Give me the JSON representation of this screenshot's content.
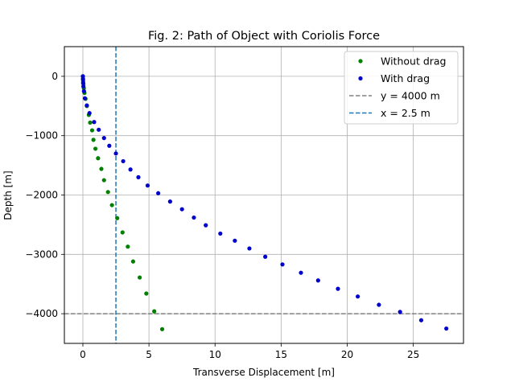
{
  "chart_data": {
    "type": "scatter",
    "title": "Fig. 2: Path of Object with Coriolis Force",
    "xlabel": "Transverse Displacement [m]",
    "ylabel": "Depth [m]",
    "xlim": [
      -1.4,
      28.8
    ],
    "ylim": [
      -4500,
      500
    ],
    "xticks": [
      0,
      5,
      10,
      15,
      20,
      25
    ],
    "yticks": [
      0,
      -1000,
      -2000,
      -3000,
      -4000
    ],
    "grid": true,
    "legend_position": "upper right",
    "series": [
      {
        "name": "Without drag",
        "color": "#008000",
        "marker": "dot",
        "points": [
          [
            0.0,
            0
          ],
          [
            0.01,
            -40
          ],
          [
            0.02,
            -80
          ],
          [
            0.04,
            -130
          ],
          [
            0.07,
            -200
          ],
          [
            0.12,
            -280
          ],
          [
            0.2,
            -380
          ],
          [
            0.3,
            -500
          ],
          [
            0.45,
            -650
          ],
          [
            0.55,
            -780
          ],
          [
            0.7,
            -910
          ],
          [
            0.8,
            -1070
          ],
          [
            0.95,
            -1220
          ],
          [
            1.15,
            -1380
          ],
          [
            1.4,
            -1560
          ],
          [
            1.6,
            -1750
          ],
          [
            1.9,
            -1950
          ],
          [
            2.2,
            -2170
          ],
          [
            2.6,
            -2390
          ],
          [
            3.0,
            -2630
          ],
          [
            3.4,
            -2870
          ],
          [
            3.8,
            -3120
          ],
          [
            4.3,
            -3390
          ],
          [
            4.8,
            -3660
          ],
          [
            5.4,
            -3960
          ],
          [
            6.0,
            -4260
          ]
        ]
      },
      {
        "name": "With drag",
        "color": "#0000cc",
        "marker": "dot",
        "points": [
          [
            0.0,
            0
          ],
          [
            0.01,
            -50
          ],
          [
            0.02,
            -110
          ],
          [
            0.04,
            -170
          ],
          [
            0.08,
            -250
          ],
          [
            0.15,
            -370
          ],
          [
            0.3,
            -490
          ],
          [
            0.5,
            -620
          ],
          [
            0.85,
            -770
          ],
          [
            1.2,
            -900
          ],
          [
            1.6,
            -1040
          ],
          [
            2.0,
            -1170
          ],
          [
            2.5,
            -1300
          ],
          [
            3.05,
            -1430
          ],
          [
            3.6,
            -1570
          ],
          [
            4.2,
            -1700
          ],
          [
            4.9,
            -1840
          ],
          [
            5.7,
            -1970
          ],
          [
            6.6,
            -2110
          ],
          [
            7.5,
            -2240
          ],
          [
            8.4,
            -2380
          ],
          [
            9.3,
            -2510
          ],
          [
            10.4,
            -2650
          ],
          [
            11.5,
            -2770
          ],
          [
            12.6,
            -2900
          ],
          [
            13.8,
            -3040
          ],
          [
            15.1,
            -3170
          ],
          [
            16.5,
            -3310
          ],
          [
            17.8,
            -3440
          ],
          [
            19.3,
            -3580
          ],
          [
            20.8,
            -3710
          ],
          [
            22.4,
            -3850
          ],
          [
            24.0,
            -3970
          ],
          [
            25.6,
            -4110
          ],
          [
            27.5,
            -4250
          ]
        ]
      }
    ],
    "reference_lines": [
      {
        "name": "y = 4000 m",
        "orientation": "horizontal",
        "value": -4000,
        "color": "#808080",
        "style": "dashed"
      },
      {
        "name": "x = 2.5 m",
        "orientation": "vertical",
        "value": 2.5,
        "color": "#1f77b4",
        "style": "dashed"
      }
    ]
  }
}
